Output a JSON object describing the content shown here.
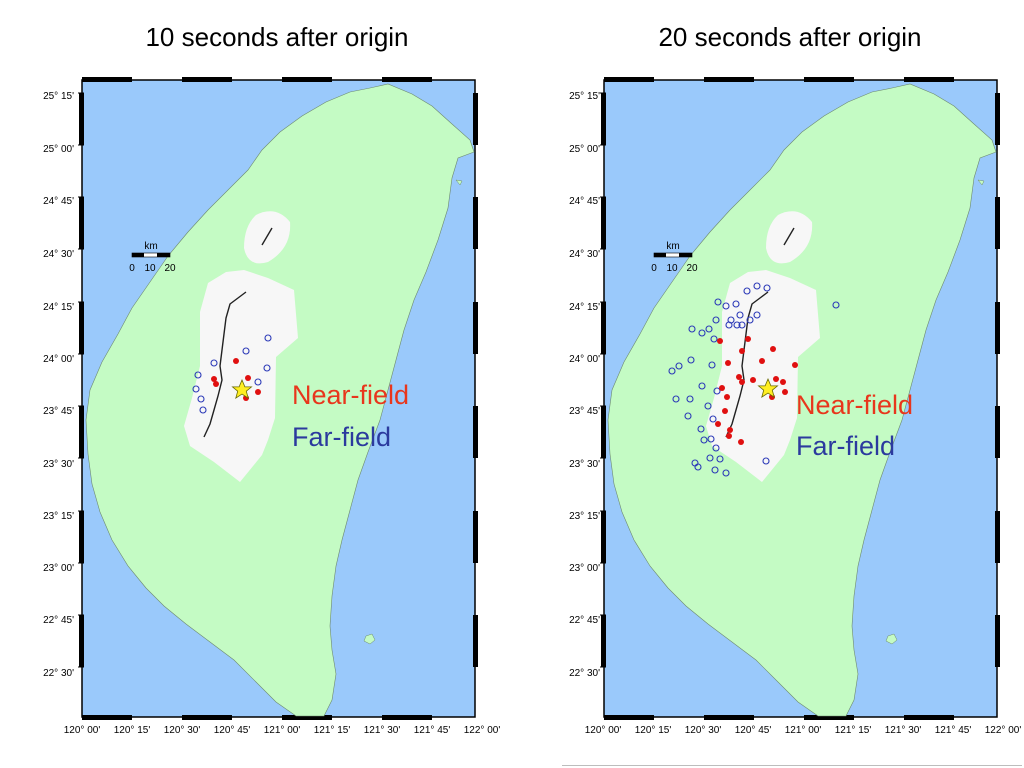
{
  "panels": [
    {
      "title": "10 seconds after origin",
      "near_label": "Near-field",
      "far_label": "Far-field",
      "near_stations": [
        [
          236,
          361
        ],
        [
          214,
          379
        ],
        [
          216,
          384
        ],
        [
          248,
          378
        ],
        [
          258,
          392
        ],
        [
          246,
          398
        ]
      ],
      "far_stations": [
        [
          214,
          363
        ],
        [
          246,
          351
        ],
        [
          198,
          375
        ],
        [
          267,
          368
        ],
        [
          196,
          389
        ],
        [
          258,
          382
        ],
        [
          201,
          399
        ],
        [
          203,
          410
        ],
        [
          268,
          338
        ]
      ]
    },
    {
      "title": "20 seconds after origin",
      "near_label": "Near-field",
      "far_label": "Far-field",
      "near_stations": [
        [
          720,
          341
        ],
        [
          748,
          339
        ],
        [
          742,
          351
        ],
        [
          773,
          349
        ],
        [
          795,
          365
        ],
        [
          728,
          363
        ],
        [
          762,
          361
        ],
        [
          739,
          377
        ],
        [
          742,
          382
        ],
        [
          776,
          379
        ],
        [
          783,
          382
        ],
        [
          722,
          388
        ],
        [
          727,
          397
        ],
        [
          753,
          380
        ],
        [
          785,
          392
        ],
        [
          772,
          397
        ],
        [
          725,
          411
        ],
        [
          718,
          424
        ],
        [
          730,
          430
        ],
        [
          729,
          436
        ],
        [
          741,
          442
        ]
      ],
      "far_stations": [
        [
          718,
          302
        ],
        [
          726,
          306
        ],
        [
          736,
          304
        ],
        [
          747,
          291
        ],
        [
          757,
          286
        ],
        [
          767,
          288
        ],
        [
          740,
          315
        ],
        [
          750,
          320
        ],
        [
          757,
          315
        ],
        [
          731,
          320
        ],
        [
          737,
          325
        ],
        [
          729,
          325
        ],
        [
          742,
          325
        ],
        [
          716,
          320
        ],
        [
          702,
          333
        ],
        [
          714,
          339
        ],
        [
          709,
          329
        ],
        [
          692,
          329
        ],
        [
          679,
          366
        ],
        [
          672,
          371
        ],
        [
          691,
          360
        ],
        [
          712,
          365
        ],
        [
          702,
          386
        ],
        [
          717,
          391
        ],
        [
          676,
          399
        ],
        [
          690,
          399
        ],
        [
          708,
          406
        ],
        [
          688,
          416
        ],
        [
          713,
          419
        ],
        [
          701,
          429
        ],
        [
          704,
          440
        ],
        [
          711,
          439
        ],
        [
          716,
          448
        ],
        [
          710,
          458
        ],
        [
          720,
          459
        ],
        [
          695,
          463
        ],
        [
          698,
          467
        ],
        [
          715,
          470
        ],
        [
          726,
          473
        ],
        [
          766,
          461
        ],
        [
          836,
          305
        ]
      ]
    }
  ],
  "scale_bar": {
    "unit": "km",
    "ticks": [
      "0",
      "10",
      "20"
    ]
  },
  "lat_labels": [
    "25° 15'",
    "25° 00'",
    "24° 45'",
    "24° 30'",
    "24° 15'",
    "24° 00'",
    "23° 45'",
    "23° 30'",
    "23° 15'",
    "23° 00'",
    "22° 45'",
    "22° 30'"
  ],
  "lon_labels": [
    "120° 00'",
    "120° 15'",
    "120° 30'",
    "120° 45'",
    "121° 00'",
    "121° 15'",
    "121° 30'",
    "121° 45'",
    "122° 00'"
  ],
  "colors": {
    "sea": "#9ac9fb",
    "land": "#c4fbc4",
    "region": "#f7f7f7",
    "near_station": "#e01010",
    "far_station": "#2c3ab8",
    "epicenter": "#ffee22"
  },
  "symbols": {
    "epicenter": "star-icon"
  }
}
